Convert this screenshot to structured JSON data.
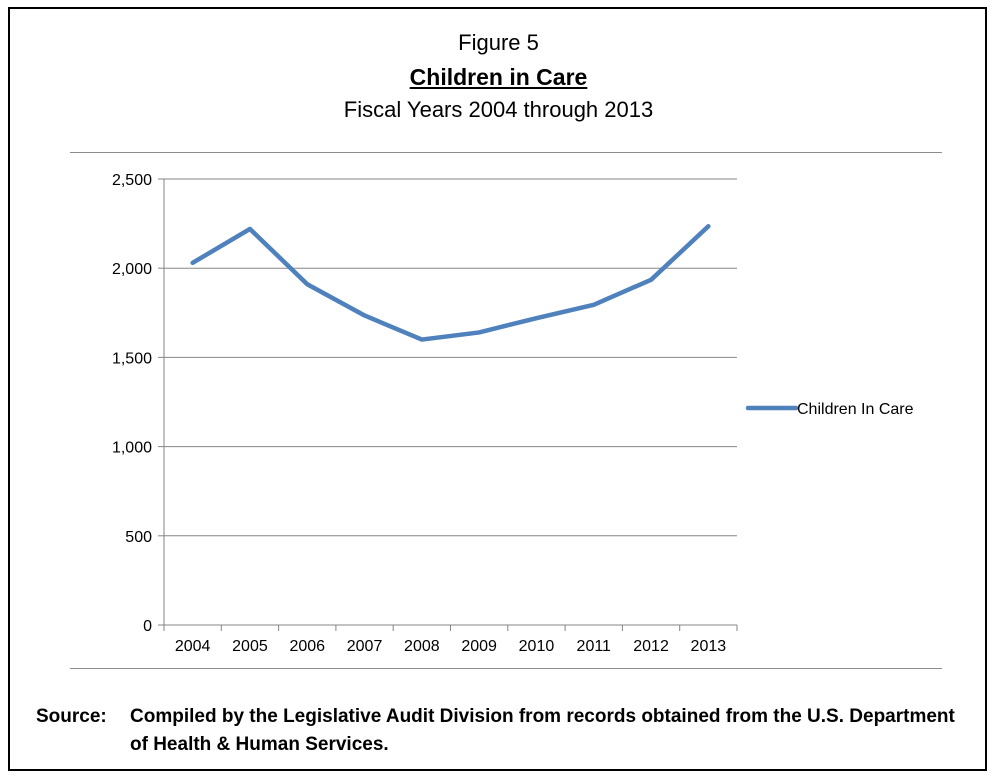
{
  "figure": {
    "label": "Figure 5",
    "title": "Children in Care",
    "subtitle": "Fiscal Years 2004 through 2013"
  },
  "chart_data": {
    "type": "line",
    "title": "Children in Care",
    "subtitle": "Fiscal Years 2004 through 2013",
    "xlabel": "",
    "ylabel": "",
    "categories": [
      "2004",
      "2005",
      "2006",
      "2007",
      "2008",
      "2009",
      "2010",
      "2011",
      "2012",
      "2013"
    ],
    "series": [
      {
        "name": "Children In Care",
        "values": [
          2030,
          2220,
          1910,
          1735,
          1600,
          1640,
          1720,
          1795,
          1935,
          2235
        ],
        "color": "#4f81bd"
      }
    ],
    "ylim": [
      0,
      2500
    ],
    "yticks": [
      0,
      500,
      1000,
      1500,
      2000,
      2500
    ],
    "ytick_labels": [
      "0",
      "500",
      "1,000",
      "1,500",
      "2,000",
      "2,500"
    ],
    "grid": true,
    "legend_position": "right"
  },
  "source": {
    "label": "Source:",
    "text": "Compiled by the Legislative Audit Division from records obtained from the U.S. Department of Health & Human Services."
  }
}
